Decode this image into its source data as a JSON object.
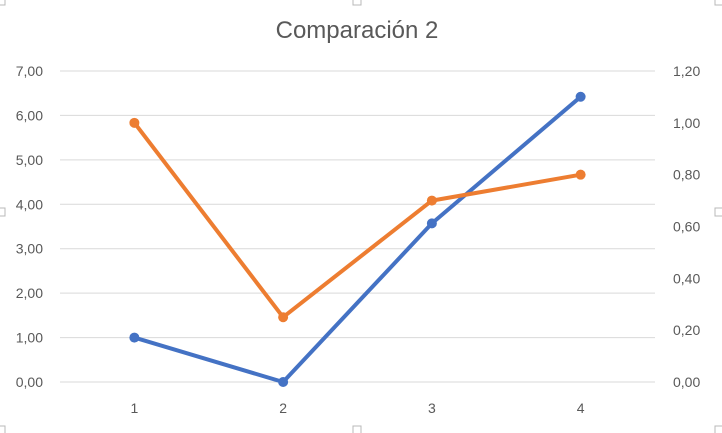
{
  "chart_data": {
    "type": "line",
    "title": "Comparación 2",
    "xlabel": "",
    "ylabel": "",
    "categories": [
      "1",
      "2",
      "3",
      "4"
    ],
    "y_left": {
      "range": [
        0,
        7
      ],
      "step": 1,
      "ticks": [
        "0,00",
        "1,00",
        "2,00",
        "3,00",
        "4,00",
        "5,00",
        "6,00",
        "7,00"
      ]
    },
    "y_right": {
      "range": [
        0,
        1.2
      ],
      "step": 0.2,
      "ticks": [
        "0,00",
        "0,20",
        "0,40",
        "0,60",
        "0,80",
        "1,00",
        "1,20"
      ]
    },
    "grid": true,
    "legend": "none",
    "series": [
      {
        "axis": "left",
        "color": "#4472C4",
        "values": [
          1.0,
          0.0,
          3.57,
          6.42
        ]
      },
      {
        "axis": "right",
        "color": "#ED7D31",
        "values": [
          1.0,
          0.25,
          0.7,
          0.8
        ]
      }
    ]
  }
}
